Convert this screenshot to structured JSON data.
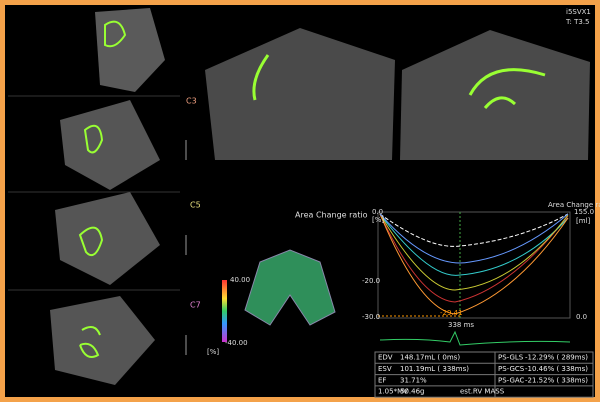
{
  "header": {
    "probe": "i5SVX1",
    "preset": "T: T3.5"
  },
  "views": {
    "labels": [
      "C3",
      "C5",
      "C7"
    ],
    "center_title": "Area Change ratio"
  },
  "color_bar": {
    "max": "40.00",
    "min": "-40.00",
    "unit": "[%]"
  },
  "graph": {
    "title": "Area Change ratio",
    "left_top": "0.0",
    "left_unit": "[%]",
    "left_mid": "-20.0",
    "left_bottom": "-30.0",
    "right_top": "155.0",
    "right_unit": "[ml]",
    "right_bottom": "0.0",
    "peak": "-29.41",
    "time": "338 ms"
  },
  "table": {
    "rows": [
      [
        "EDV",
        "148.17mL (    0ms)",
        "PS-GLS",
        "-12.29% ( 289ms)"
      ],
      [
        "ESV",
        "101.19mL ( 338ms)",
        "PS-GCS",
        "-10.46% ( 338ms)"
      ],
      [
        "EF",
        "31.71%",
        "PS-GAC",
        "-21.52% ( 338ms)"
      ],
      [
        "1.05*MV",
        "50.46g",
        "est.RV MASS",
        ""
      ]
    ]
  }
}
